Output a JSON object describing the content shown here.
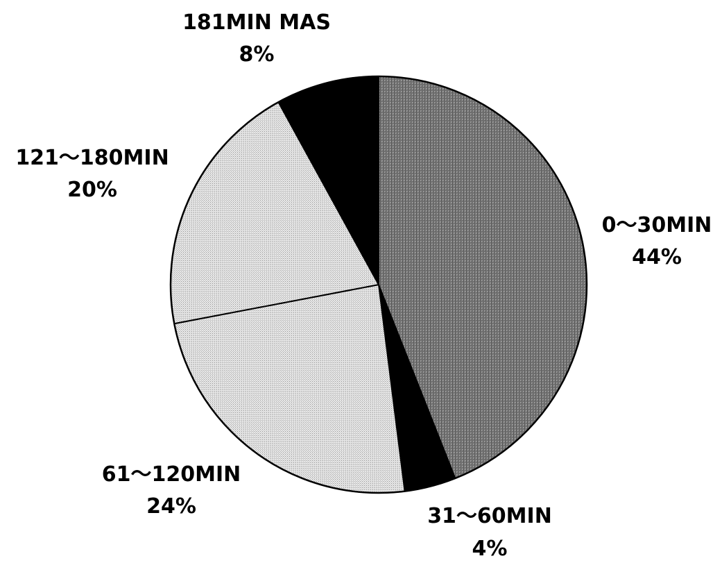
{
  "chart_data": {
    "type": "pie",
    "title": "",
    "slices": [
      {
        "label": "0〜30MIN",
        "value": 44,
        "value_label": "44%",
        "color": "#7a7a7a",
        "pattern": "dark-stipple"
      },
      {
        "label": "31〜60MIN",
        "value": 4,
        "value_label": "4%",
        "color": "#000000",
        "pattern": "solid"
      },
      {
        "label": "61〜120MIN",
        "value": 24,
        "value_label": "24%",
        "color": "#dcdcdc",
        "pattern": "light-stipple"
      },
      {
        "label": "121〜180MIN",
        "value": 20,
        "value_label": "20%",
        "color": "#d4d4d4",
        "pattern": "light-stipple"
      },
      {
        "label": "181MIN MAS",
        "value": 8,
        "value_label": "8%",
        "color": "#000000",
        "pattern": "solid"
      }
    ],
    "start": "12 o'clock",
    "direction": "clockwise",
    "legend": "none",
    "labels": "outside"
  }
}
